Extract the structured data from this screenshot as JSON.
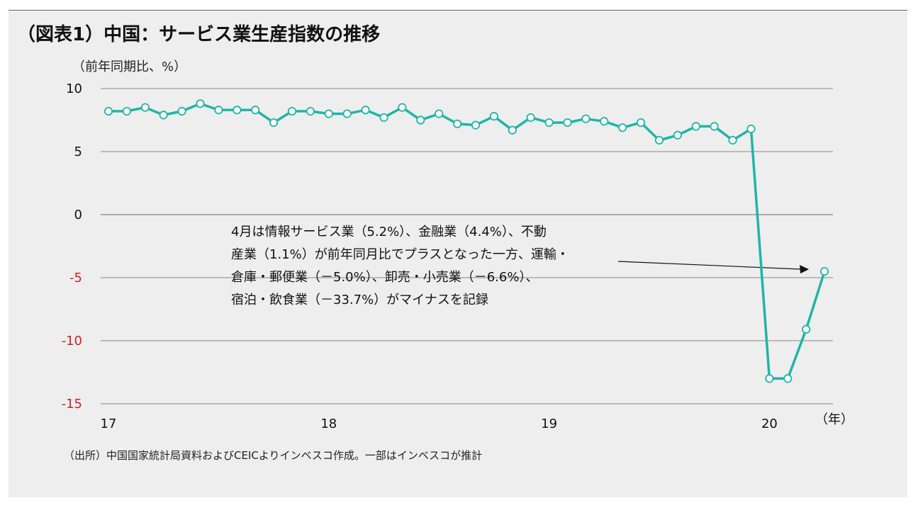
{
  "title": "（図表1）中国：サービス業生産指数の推移",
  "unit_label": "（前年同期比、%）",
  "x_unit_label": "（年）",
  "source": "（出所）中国国家統計局資料およびCEICよりインベスコ作成。一部はインベスコが推計",
  "annotation": {
    "lines": [
      "4月は情報サービス業（5.2%）、金融業（4.4%）、不動",
      "産業（1.1%）が前年同月比でプラスとなった一方、運輸・",
      "倉庫・郵便業（－5.0%）、卸売・小売業（－6.6%）、",
      "宿泊・飲食業（－33.7%）がマイナスを記録"
    ]
  },
  "colors": {
    "line": "#1fb5a6",
    "marker_fill": "#ffffff",
    "negative_tick": "#d62020",
    "positive_tick": "#111111",
    "grid": "#888888",
    "background": "#eeeeee"
  },
  "chart_data": {
    "type": "line",
    "title": "（図表1）中国：サービス業生産指数の推移",
    "ylabel": "（前年同期比、%）",
    "xlabel": "（年）",
    "ylim": [
      -15,
      10
    ],
    "yticks": [
      10,
      5,
      0,
      -5,
      -10,
      -15
    ],
    "x_tick_labels": [
      {
        "label": "17",
        "index": 0
      },
      {
        "label": "18",
        "index": 12
      },
      {
        "label": "19",
        "index": 24
      },
      {
        "label": "20",
        "index": 36
      }
    ],
    "grid": true,
    "legend": "none",
    "series": [
      {
        "values": [
          8.2,
          8.2,
          8.5,
          7.9,
          8.2,
          8.8,
          8.3,
          8.3,
          8.3,
          7.3,
          8.2,
          8.2,
          8.0,
          8.0,
          8.3,
          7.7,
          8.5,
          7.5,
          8.0,
          7.2,
          7.1,
          7.8,
          6.7,
          7.7,
          7.3,
          7.3,
          7.6,
          7.4,
          6.9,
          7.3,
          5.9,
          6.3,
          7.0,
          7.0,
          5.9,
          6.8,
          -13.0,
          -13.0,
          -9.1,
          -4.5
        ]
      }
    ]
  }
}
